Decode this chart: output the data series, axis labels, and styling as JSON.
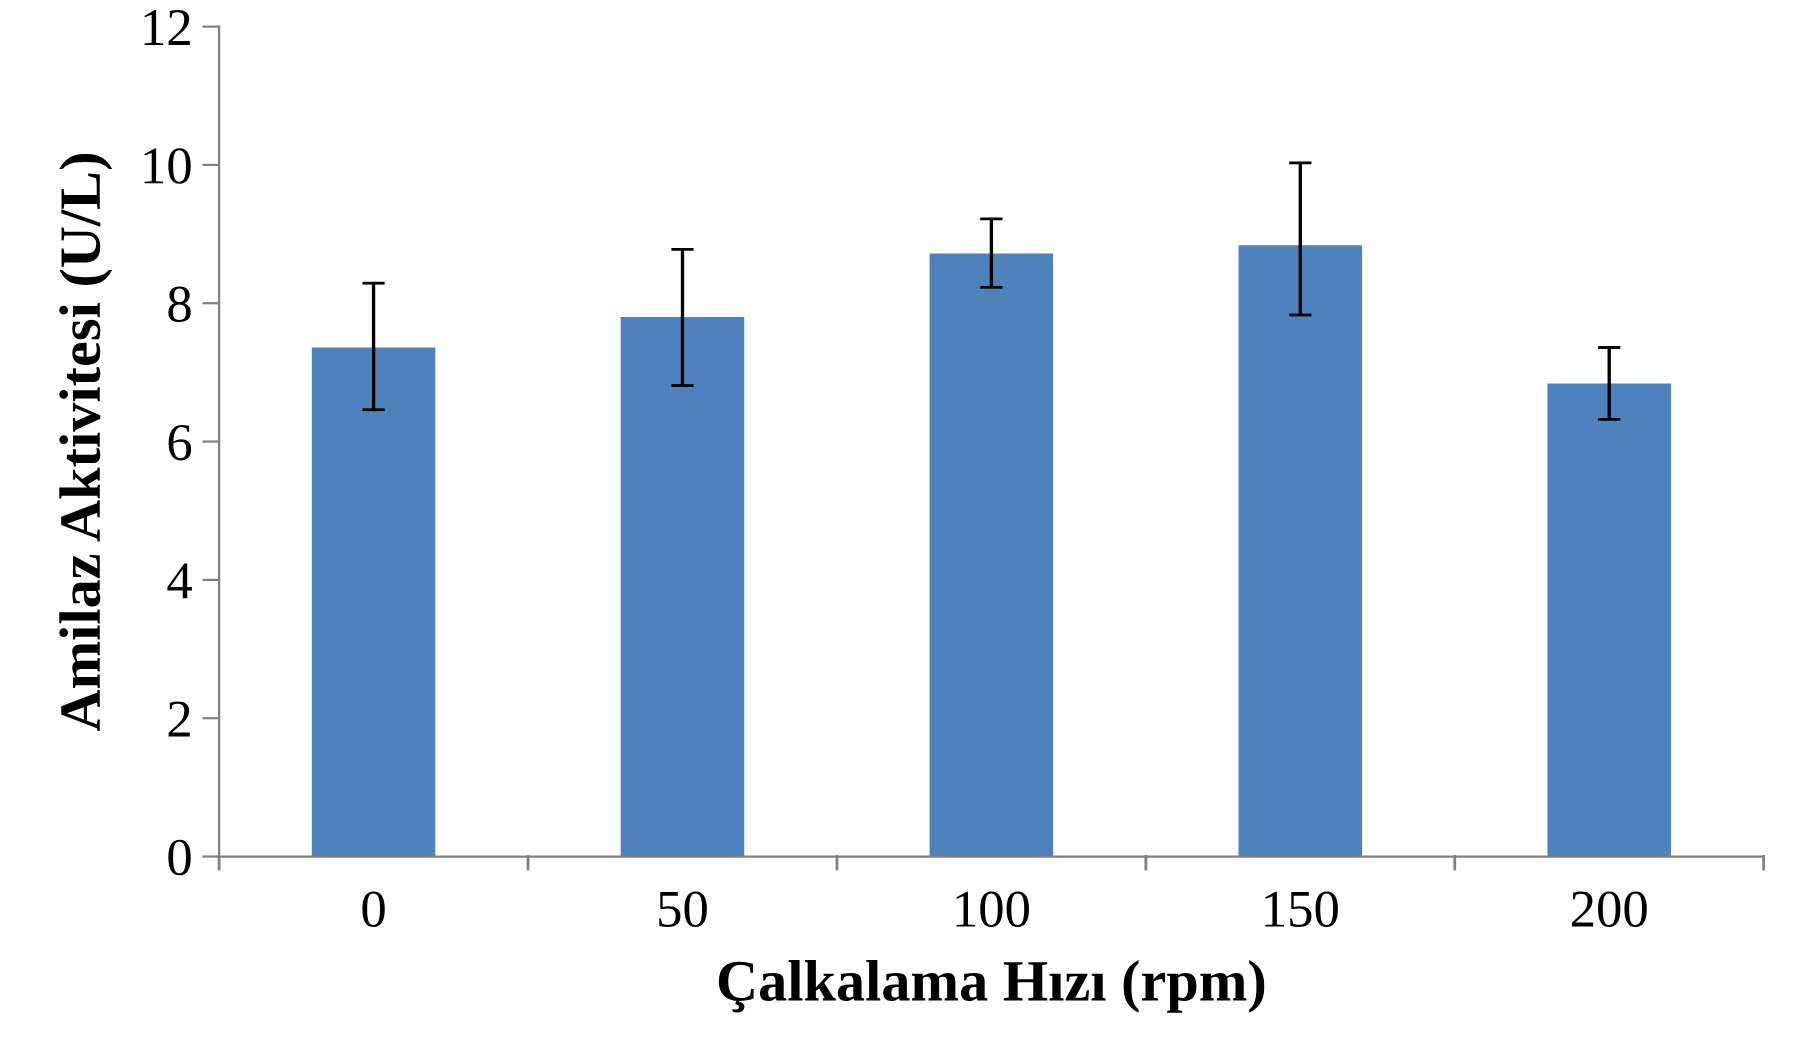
{
  "chart_data": {
    "type": "bar",
    "xlabel": "Çalkalama Hızı (rpm)",
    "ylabel": "Amilaz Aktivitesi (U/L)",
    "categories": [
      "0",
      "50",
      "100",
      "150",
      "200"
    ],
    "values": [
      7.36,
      7.8,
      8.72,
      8.84,
      6.84
    ],
    "errors": [
      [
        6.46,
        8.29
      ],
      [
        6.81,
        8.78
      ],
      [
        8.23,
        9.22
      ],
      [
        7.83,
        10.03
      ],
      [
        6.32,
        7.36
      ]
    ],
    "color": "#4f81bd",
    "ylim": [
      0,
      12
    ],
    "yticks": [
      0,
      2,
      4,
      6,
      8,
      10,
      12
    ],
    "grid": false
  }
}
